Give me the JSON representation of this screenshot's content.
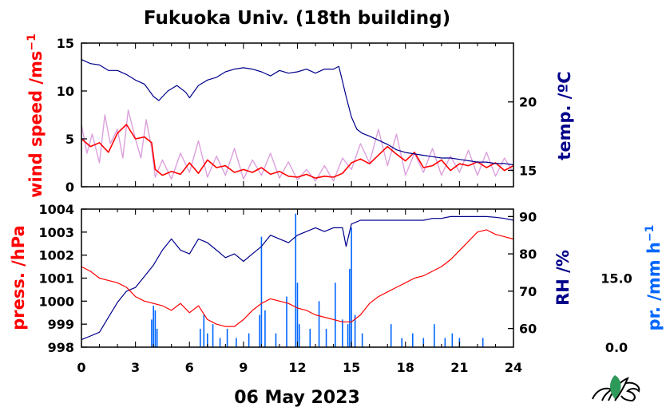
{
  "title": "Fukuoka Univ. (18th building)",
  "date_label": "06 May 2023",
  "colors": {
    "red": "#ff0000",
    "navy": "#00008b",
    "blue": "#0066ff",
    "pink": "#dda0dd",
    "black": "#000000",
    "logo_green": "#2e9a5a"
  },
  "chart_data": [
    {
      "type": "line",
      "panel": "top",
      "xlim": [
        0,
        24
      ],
      "x_ticks": [
        "0",
        "3",
        "6",
        "9",
        "12",
        "15",
        "18",
        "21",
        "24"
      ],
      "left_axis": {
        "label": "wind speed /ms",
        "label_superscript": "−1",
        "ylim": [
          0,
          15
        ],
        "ticks": [
          "0",
          "5",
          "10",
          "15"
        ]
      },
      "right_axis": {
        "label": "temp. /ºC",
        "ylim": [
          13.8,
          24.3
        ],
        "ticks": [
          "15",
          "20"
        ]
      },
      "series": [
        {
          "axis": "left",
          "role": "wind-raw",
          "x": [
            0,
            0.3,
            0.6,
            1,
            1.3,
            1.6,
            2,
            2.3,
            2.6,
            3,
            3.3,
            3.6,
            3.9,
            4.1,
            4.5,
            5,
            5.5,
            6,
            6.5,
            7,
            7.5,
            8,
            8.5,
            9,
            9.5,
            10,
            10.5,
            11,
            11.5,
            12,
            12.5,
            13,
            13.5,
            14,
            14.5,
            15,
            15.5,
            16,
            16.5,
            17,
            17.5,
            18,
            18.5,
            19,
            19.5,
            20,
            20.5,
            21,
            21.5,
            22,
            22.5,
            23,
            23.5,
            24
          ],
          "y": [
            6.5,
            3.5,
            5.5,
            2.5,
            7.5,
            4.5,
            6,
            3,
            8,
            5,
            3,
            7,
            4,
            1,
            2.8,
            0.8,
            3.5,
            1.5,
            4.8,
            1,
            3.2,
            1.2,
            4,
            0.8,
            2.8,
            1.2,
            3.5,
            0.9,
            2.6,
            0.7,
            1.8,
            0.6,
            2.2,
            0.6,
            3,
            1.8,
            4.5,
            2.5,
            6,
            2.2,
            5.5,
            1.2,
            3.5,
            1.5,
            4,
            1.2,
            3.2,
            1.5,
            3.8,
            1.2,
            3.6,
            1.1,
            3.0,
            1.5
          ]
        },
        {
          "axis": "left",
          "role": "wind-mean",
          "x": [
            0,
            0.5,
            1,
            1.5,
            2,
            2.5,
            3,
            3.5,
            3.9,
            4.1,
            4.5,
            5,
            5.5,
            6,
            6.5,
            7,
            7.5,
            8,
            8.5,
            9,
            9.5,
            10,
            10.5,
            11,
            11.5,
            12,
            12.5,
            13,
            13.5,
            14,
            14.5,
            15,
            15.5,
            16,
            16.5,
            17,
            17.5,
            18,
            18.5,
            19,
            19.5,
            20,
            20.5,
            21,
            21.5,
            22,
            22.5,
            23,
            23.5,
            24
          ],
          "y": [
            5,
            4.2,
            4.6,
            3.6,
            5.6,
            6.5,
            5,
            5.2,
            4.6,
            1.8,
            1.2,
            1.6,
            1.3,
            2.5,
            1.4,
            2.8,
            2,
            2.2,
            1.5,
            1.8,
            1.5,
            2,
            1.3,
            1.6,
            1.1,
            1.0,
            1.3,
            0.9,
            1.1,
            1.0,
            1.4,
            2.5,
            2.9,
            2.4,
            3.3,
            4.2,
            3.4,
            2.7,
            3.6,
            2.0,
            2.2,
            2.8,
            1.7,
            2.4,
            2.2,
            2.6,
            2.0,
            2.5,
            1.7,
            2.2
          ]
        },
        {
          "axis": "right",
          "role": "temperature",
          "x": [
            0,
            0.5,
            1,
            1.5,
            2,
            2.5,
            3,
            3.5,
            4,
            4.3,
            4.8,
            5.3,
            5.8,
            6,
            6.5,
            7,
            7.5,
            8,
            8.5,
            9,
            9.5,
            10,
            10.5,
            11,
            11.5,
            12,
            12.5,
            13,
            13.5,
            14,
            14.3,
            14.5,
            14.7,
            15,
            15.3,
            15.6,
            16,
            16.5,
            17,
            17.5,
            18,
            18.5,
            19,
            19.5,
            20,
            20.5,
            21,
            21.5,
            22,
            22.5,
            23,
            23.5,
            24
          ],
          "y": [
            23.1,
            22.8,
            22.7,
            22.3,
            22.3,
            22,
            21.6,
            21.3,
            20.4,
            20.1,
            20.8,
            21.2,
            20.7,
            20.3,
            21.2,
            21.6,
            21.8,
            22.2,
            22.4,
            22.5,
            22.4,
            22.2,
            21.9,
            22.3,
            22.1,
            22.2,
            22.4,
            22.1,
            22.4,
            22.4,
            22.6,
            21.5,
            20.4,
            18.9,
            18.0,
            17.7,
            17.5,
            17.2,
            16.9,
            16.5,
            16.3,
            16.2,
            16.1,
            16.0,
            15.9,
            15.9,
            15.8,
            15.7,
            15.6,
            15.6,
            15.5,
            15.5,
            15.4
          ]
        }
      ]
    },
    {
      "type": "line",
      "panel": "bottom",
      "xlim": [
        0,
        24
      ],
      "x_ticks": [
        "0",
        "3",
        "6",
        "9",
        "12",
        "15",
        "18",
        "21",
        "24"
      ],
      "xlabel": "06 May 2023",
      "left_axis": {
        "label": "press. /hPa",
        "ylim": [
          998,
          1004
        ],
        "ticks": [
          "998",
          "999",
          "1000",
          "1001",
          "1002",
          "1003",
          "1004"
        ]
      },
      "right_axis": {
        "label": "RH /%",
        "ylim": [
          55,
          92
        ],
        "ticks": [
          "60",
          "70",
          "80",
          "90"
        ]
      },
      "precip_axis": {
        "label": "pr. /mm h",
        "label_superscript": "−1",
        "ylim": [
          0,
          30
        ],
        "ticks": [
          "0.0",
          "15.0"
        ]
      },
      "series": [
        {
          "axis": "left",
          "role": "pressure",
          "x": [
            0,
            0.5,
            1,
            1.5,
            2,
            2.5,
            3,
            3.5,
            4,
            4.5,
            5,
            5.5,
            6,
            6.5,
            7,
            7.5,
            8,
            8.5,
            9,
            9.5,
            10,
            10.5,
            11,
            11.5,
            12,
            12.5,
            13,
            13.5,
            14,
            14.5,
            15,
            15.5,
            16,
            16.5,
            17,
            17.5,
            18,
            18.5,
            19,
            19.5,
            20,
            20.5,
            21,
            21.5,
            22,
            22.5,
            23,
            23.5,
            24
          ],
          "y": [
            1001.5,
            1001.3,
            1001.0,
            1000.9,
            1000.8,
            1000.6,
            1000.2,
            1000.0,
            999.9,
            999.8,
            999.6,
            999.9,
            999.5,
            999.8,
            999.2,
            999.0,
            998.9,
            998.9,
            999.2,
            999.6,
            999.9,
            1000.1,
            1000.0,
            999.9,
            999.7,
            999.6,
            999.4,
            999.3,
            999.2,
            999.1,
            999.1,
            999.4,
            999.9,
            1000.2,
            1000.4,
            1000.6,
            1000.8,
            1001.0,
            1001.1,
            1001.3,
            1001.5,
            1001.8,
            1002.2,
            1002.6,
            1003.0,
            1003.1,
            1002.9,
            1002.8,
            1002.7
          ]
        },
        {
          "axis": "right",
          "role": "humidity",
          "x": [
            0,
            0.5,
            1,
            1.5,
            2,
            2.5,
            3,
            3.5,
            4,
            4.5,
            5,
            5.5,
            6,
            6.5,
            7,
            7.5,
            8,
            8.5,
            9,
            9.5,
            10,
            10.5,
            11,
            11.5,
            12,
            12.5,
            13,
            13.5,
            14,
            14.5,
            14.7,
            15,
            15.5,
            16,
            16.5,
            17,
            17.5,
            18,
            18.5,
            19,
            19.5,
            20,
            20.5,
            21,
            21.5,
            22,
            22.5,
            23,
            23.5,
            24
          ],
          "y": [
            57,
            58,
            59,
            63,
            67,
            70,
            71,
            74,
            77,
            81,
            84,
            81,
            80,
            84,
            83,
            81,
            79,
            80,
            78,
            80,
            82,
            85,
            84,
            83,
            85,
            86,
            87,
            86,
            87,
            87,
            82,
            88,
            89,
            89,
            89,
            89,
            89,
            89,
            89,
            89,
            89.5,
            89.5,
            90,
            90,
            90,
            90,
            90,
            89.8,
            89.5,
            89
          ]
        },
        {
          "axis": "precip",
          "role": "precipitation",
          "x": [
            3.9,
            4.0,
            4.1,
            4.2,
            6.6,
            6.8,
            7.0,
            7.3,
            7.7,
            8.1,
            8.6,
            9.3,
            9.9,
            10.0,
            10.2,
            10.8,
            11.4,
            11.9,
            12.0,
            12.1,
            12.7,
            13.2,
            13.6,
            14.1,
            14.5,
            14.8,
            14.9,
            15.0,
            15.2,
            15.6,
            17.2,
            17.8,
            18.4,
            19.0,
            19.6,
            20.2,
            20.6,
            21.0,
            22.3
          ],
          "y": [
            6,
            9,
            8,
            4,
            4,
            7,
            3,
            5,
            2,
            4,
            2,
            3,
            7,
            24,
            8,
            3,
            11,
            29,
            14,
            5,
            4,
            10,
            4,
            14,
            6,
            5,
            17,
            26,
            7,
            3,
            5,
            2,
            3,
            2,
            5,
            2,
            3,
            2,
            2
          ]
        }
      ]
    }
  ]
}
